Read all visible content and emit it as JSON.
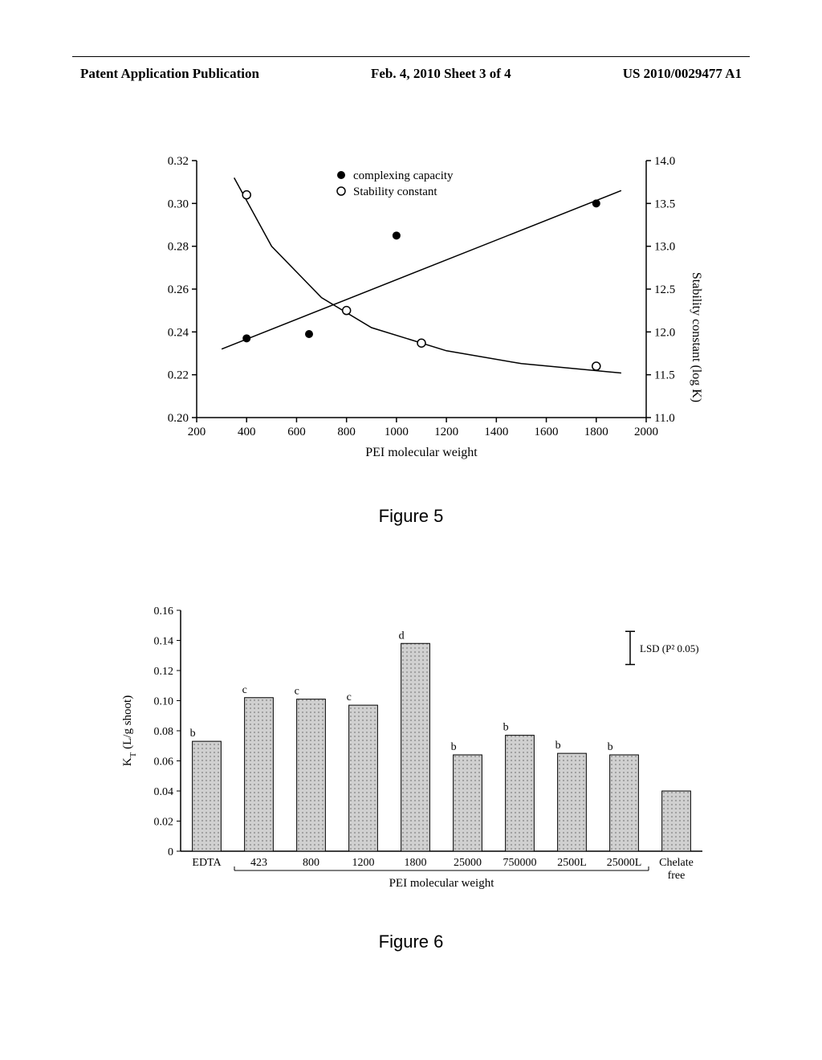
{
  "header": {
    "left": "Patent Application Publication",
    "center": "Feb. 4, 2010  Sheet 3 of 4",
    "right": "US 2010/0029477 A1"
  },
  "figure5": {
    "caption": "Figure 5",
    "type": "scatter-line",
    "xlabel": "PEI molecular weight",
    "y1_label": "",
    "y2_label": "Stability constant (log K)",
    "xlim": [
      200,
      2000
    ],
    "xtick_step": 200,
    "y1_lim": [
      0.2,
      0.32
    ],
    "y1_tick_step": 0.02,
    "y2_lim": [
      11.0,
      14.0
    ],
    "y2_tick_step": 0.5,
    "legend": {
      "items": [
        {
          "marker": "filled-circle",
          "label": "complexing capacity"
        },
        {
          "marker": "open-circle",
          "label": "Stability constant"
        }
      ]
    },
    "complexing_points": [
      {
        "x": 400,
        "y": 0.237
      },
      {
        "x": 650,
        "y": 0.239
      },
      {
        "x": 1000,
        "y": 0.285
      },
      {
        "x": 1800,
        "y": 0.3
      }
    ],
    "complexing_line": [
      {
        "x": 300,
        "y": 0.232
      },
      {
        "x": 1900,
        "y": 0.306
      }
    ],
    "stability_points": [
      {
        "x": 400,
        "y": 13.6
      },
      {
        "x": 800,
        "y": 12.25
      },
      {
        "x": 1100,
        "y": 11.87
      },
      {
        "x": 1800,
        "y": 11.6
      }
    ],
    "stability_curve": [
      {
        "x": 350,
        "y": 13.8
      },
      {
        "x": 500,
        "y": 13.0
      },
      {
        "x": 700,
        "y": 12.4
      },
      {
        "x": 900,
        "y": 12.05
      },
      {
        "x": 1200,
        "y": 11.78
      },
      {
        "x": 1500,
        "y": 11.63
      },
      {
        "x": 1900,
        "y": 11.52
      }
    ],
    "colors": {
      "axis": "#000000",
      "marker_fill": "#000000",
      "marker_open": "#ffffff",
      "line": "#000000",
      "background": "#ffffff"
    },
    "font_size_axis": 15,
    "font_size_label": 16,
    "marker_radius": 5,
    "line_width": 1.5
  },
  "figure6": {
    "caption": "Figure 6",
    "type": "bar",
    "ylabel": "K_T (L/g shoot)",
    "xlabel": "PEI molecular weight",
    "ylim": [
      0,
      0.16
    ],
    "ytick_step": 0.02,
    "categories": [
      "EDTA",
      "423",
      "800",
      "1200",
      "1800",
      "25000",
      "750000",
      "2500L",
      "25000L",
      "Chelate free"
    ],
    "values": [
      0.073,
      0.102,
      0.101,
      0.097,
      0.138,
      0.064,
      0.077,
      0.065,
      0.064,
      0.04
    ],
    "letters": [
      "b",
      "c",
      "c",
      "c",
      "d",
      "b",
      "b",
      "b",
      "b",
      ""
    ],
    "lsd_label": "LSD (P² 0.05)",
    "lsd_value": 0.022,
    "colors": {
      "bar_fill": "#d0d0d0",
      "bar_pattern": "#808080",
      "axis": "#000000",
      "background": "#ffffff"
    },
    "font_size_axis": 14,
    "font_size_label": 15,
    "bar_width": 0.55
  }
}
